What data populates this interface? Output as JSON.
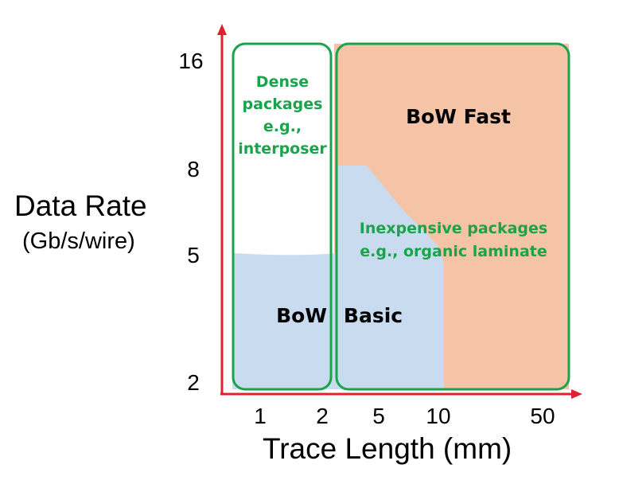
{
  "axes": {
    "y_label": "Data Rate",
    "y_unit": "(Gb/s/wire)",
    "x_label": "Trace Length (mm)",
    "y_ticks": [
      "16",
      "8",
      "5",
      "2"
    ],
    "x_ticks": [
      "1",
      "2",
      "5",
      "10",
      "50"
    ]
  },
  "regions": {
    "dense": "Dense\npackages\ne.g.,\ninterposer",
    "inexpensive": "Inexpensive packages\ne.g., organic laminate",
    "bow_fast": "BoW Fast",
    "bow_basic_left": "BoW",
    "bow_basic_right": "Basic"
  },
  "colors": {
    "axis": "#e0202e",
    "group_border": "#1aa34a",
    "group_text": "#1aa34a",
    "fast_fill": "#f5c4a7",
    "basic_fill": "#c9dcef"
  }
}
